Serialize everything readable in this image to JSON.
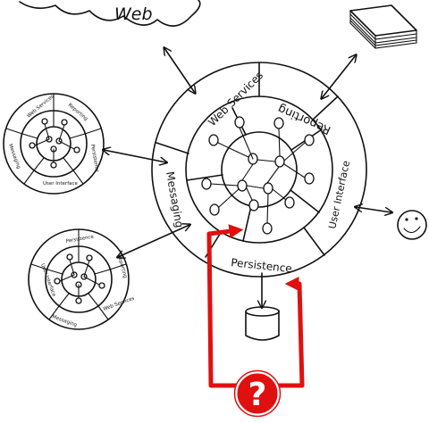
{
  "cloud": {
    "label": "Web"
  },
  "main_ring": {
    "segments": [
      "Web Services",
      "Reporting",
      "User Interface",
      "Persistence",
      "Messaging"
    ]
  },
  "small_ring_top": {
    "segments": [
      "Web Services",
      "Reporting",
      "Persistence",
      "User Interface",
      "Messaging"
    ]
  },
  "small_ring_bottom": {
    "segments": [
      "Web Services",
      "Reporting",
      "Persistence",
      "User Interface",
      "Messaging"
    ]
  },
  "question": {
    "symbol": "?"
  },
  "colors": {
    "ink": "#111111",
    "accent": "#e01010",
    "background": "#ffffff"
  },
  "icons": [
    "cloud-icon",
    "document-stack-icon",
    "smiley-icon",
    "database-icon",
    "question-badge-icon"
  ]
}
